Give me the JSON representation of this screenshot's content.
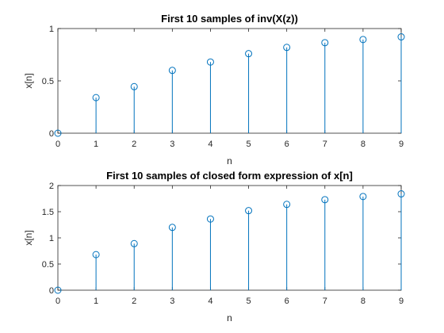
{
  "colors": {
    "series": "#0072BD",
    "axis": "#262626",
    "background": "#ffffff"
  },
  "chart_data": [
    {
      "type": "stem",
      "title": "First 10 samples of inv(X(z))",
      "xlabel": "n",
      "ylabel": "x[n]",
      "xlim": [
        0,
        9
      ],
      "ylim": [
        0,
        1
      ],
      "xticks": [
        "0",
        "1",
        "2",
        "3",
        "4",
        "5",
        "6",
        "7",
        "8",
        "9"
      ],
      "yticks": [
        "0",
        "0.5",
        "1"
      ],
      "grid": false,
      "series": [
        {
          "x": [
            0,
            1,
            2,
            3,
            4,
            5,
            6,
            7,
            8,
            9
          ],
          "values": [
            0,
            0.34,
            0.445,
            0.6,
            0.68,
            0.76,
            0.82,
            0.865,
            0.895,
            0.92
          ]
        }
      ]
    },
    {
      "type": "stem",
      "title": "First 10 samples of closed form expression of x[n]",
      "xlabel": "n",
      "ylabel": "x[n]",
      "xlim": [
        0,
        9
      ],
      "ylim": [
        0,
        2
      ],
      "xticks": [
        "0",
        "1",
        "2",
        "3",
        "4",
        "5",
        "6",
        "7",
        "8",
        "9"
      ],
      "yticks": [
        "0",
        "0.5",
        "1",
        "1.5",
        "2"
      ],
      "grid": false,
      "series": [
        {
          "x": [
            0,
            1,
            2,
            3,
            4,
            5,
            6,
            7,
            8,
            9
          ],
          "values": [
            0,
            0.68,
            0.89,
            1.2,
            1.36,
            1.52,
            1.64,
            1.73,
            1.79,
            1.84
          ]
        }
      ]
    }
  ]
}
